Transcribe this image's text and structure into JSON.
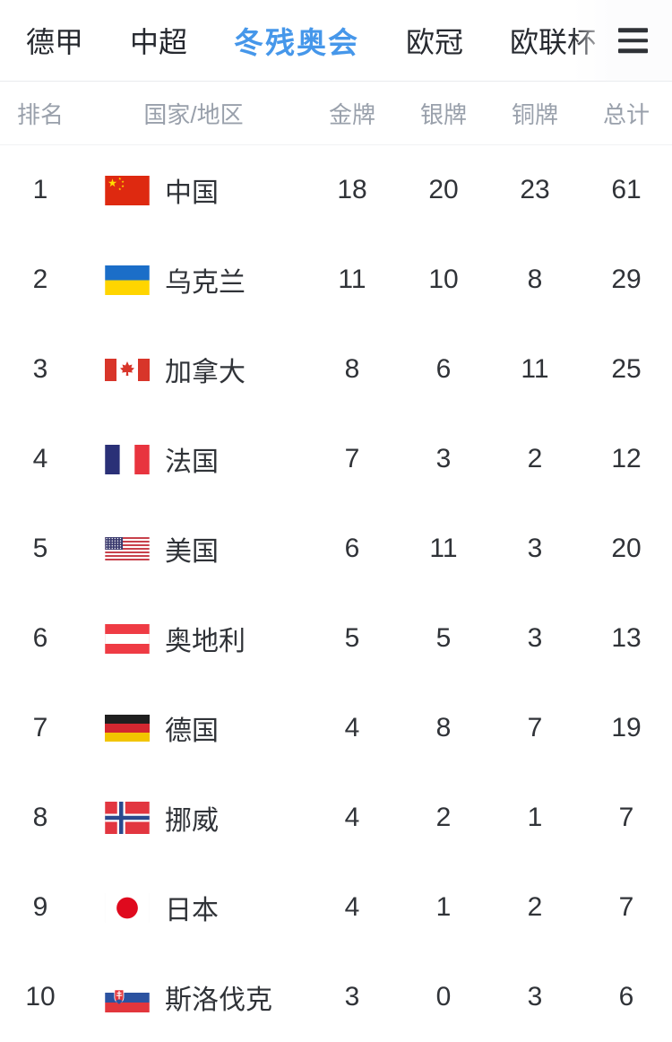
{
  "tab_bar": {
    "tabs": [
      {
        "name": "tab-bundesliga",
        "label": "德甲",
        "active": false
      },
      {
        "name": "tab-csl",
        "label": "中超",
        "active": false
      },
      {
        "name": "tab-winter-paralympics",
        "label": "冬残奥会",
        "active": true
      },
      {
        "name": "tab-ucl",
        "label": "欧冠",
        "active": false
      },
      {
        "name": "tab-uel",
        "label": "欧联杯",
        "active": false
      }
    ],
    "menu_icon": "hamburger-menu-icon"
  },
  "colors": {
    "accent_active_tab": "#4697ea",
    "tab_text": "#26292f",
    "header_text": "#99a0ab",
    "body_text": "#303338",
    "divider": "#e9ebee"
  },
  "medal_table": {
    "columns": [
      {
        "name": "col-rank",
        "label": "排名"
      },
      {
        "name": "col-country-region",
        "label": "国家/地区"
      },
      {
        "name": "col-gold",
        "label": "金牌"
      },
      {
        "name": "col-silver",
        "label": "银牌"
      },
      {
        "name": "col-bronze",
        "label": "铜牌"
      },
      {
        "name": "col-total",
        "label": "总计"
      }
    ],
    "rows": [
      {
        "rank": "1",
        "flag": "flag-china",
        "country": "中国",
        "gold": "18",
        "silver": "20",
        "bronze": "23",
        "total": "61"
      },
      {
        "rank": "2",
        "flag": "flag-ukraine",
        "country": "乌克兰",
        "gold": "11",
        "silver": "10",
        "bronze": "8",
        "total": "29"
      },
      {
        "rank": "3",
        "flag": "flag-canada",
        "country": "加拿大",
        "gold": "8",
        "silver": "6",
        "bronze": "11",
        "total": "25"
      },
      {
        "rank": "4",
        "flag": "flag-france",
        "country": "法国",
        "gold": "7",
        "silver": "3",
        "bronze": "2",
        "total": "12"
      },
      {
        "rank": "5",
        "flag": "flag-usa",
        "country": "美国",
        "gold": "6",
        "silver": "11",
        "bronze": "3",
        "total": "20"
      },
      {
        "rank": "6",
        "flag": "flag-austria",
        "country": "奥地利",
        "gold": "5",
        "silver": "5",
        "bronze": "3",
        "total": "13"
      },
      {
        "rank": "7",
        "flag": "flag-germany",
        "country": "德国",
        "gold": "4",
        "silver": "8",
        "bronze": "7",
        "total": "19"
      },
      {
        "rank": "8",
        "flag": "flag-norway",
        "country": "挪威",
        "gold": "4",
        "silver": "2",
        "bronze": "1",
        "total": "7"
      },
      {
        "rank": "9",
        "flag": "flag-japan",
        "country": "日本",
        "gold": "4",
        "silver": "1",
        "bronze": "2",
        "total": "7"
      },
      {
        "rank": "10",
        "flag": "flag-slovakia",
        "country": "斯洛伐克",
        "gold": "3",
        "silver": "0",
        "bronze": "3",
        "total": "6"
      }
    ]
  }
}
